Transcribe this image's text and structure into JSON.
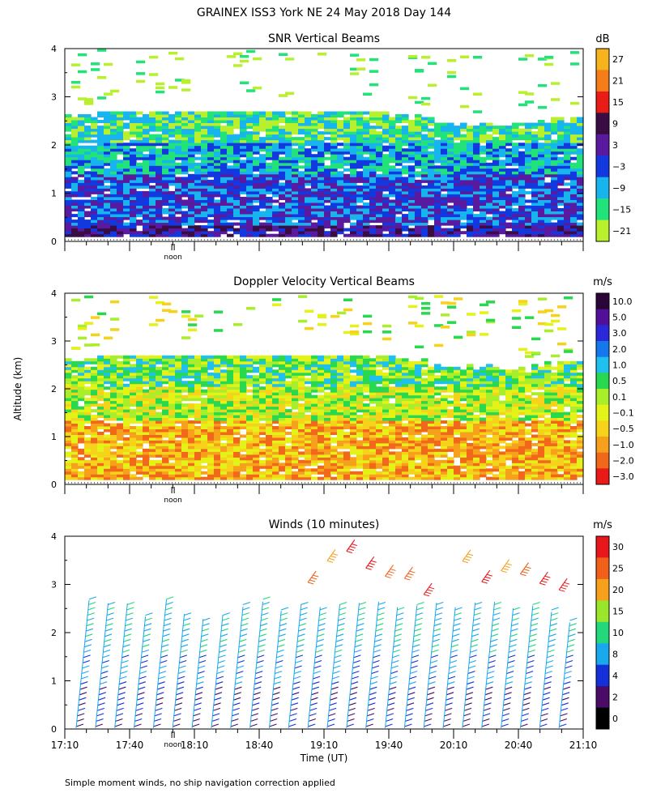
{
  "title": "GRAINEX ISS3 York NE  24 May 2018 Day 144",
  "ylabel": "Altitude (km)",
  "xlabel": "Time (UT)",
  "footnote": "Simple moment winds, no ship navigation correction applied",
  "noon_label": "noon",
  "chart_data": [
    {
      "type": "heatmap",
      "title": "SNR Vertical Beams",
      "ylim": [
        0,
        4
      ],
      "yticks": [
        "0",
        "1",
        "2",
        "3",
        "4"
      ],
      "colorbar": {
        "unit": "dB",
        "labels": [
          "27",
          "21",
          "15",
          "9",
          "3",
          "−3",
          "−9",
          "−15",
          "−21"
        ],
        "colors": [
          "#f6b31e",
          "#f47d1a",
          "#ea1c16",
          "#3a0c44",
          "#5a1aa0",
          "#1238e0",
          "#18b4ee",
          "#22e27a",
          "#b8f02e"
        ]
      }
    },
    {
      "type": "heatmap",
      "title": "Doppler Velocity Vertical Beams",
      "ylim": [
        0,
        4
      ],
      "yticks": [
        "0",
        "1",
        "2",
        "3",
        "4"
      ],
      "colorbar": {
        "unit": "m/s",
        "labels": [
          "10.0",
          "5.0",
          "3.0",
          "2.0",
          "1.0",
          "0.5",
          "0.1",
          "−0.1",
          "−0.5",
          "−1.0",
          "−2.0",
          "−3.0"
        ],
        "colors": [
          "#2a0638",
          "#52109a",
          "#2a28d8",
          "#1478ec",
          "#20c0ee",
          "#28d84e",
          "#a8ee2a",
          "#e4f218",
          "#f6d21a",
          "#f6a01c",
          "#f2681a",
          "#ea1a16"
        ]
      }
    },
    {
      "type": "scatter",
      "title": "Winds (10 minutes)",
      "ylim": [
        0,
        4
      ],
      "yticks": [
        "0",
        "1",
        "2",
        "3",
        "4"
      ],
      "xticks": [
        "17:10",
        "17:40",
        "18:10",
        "18:40",
        "19:10",
        "19:40",
        "20:10",
        "20:40",
        "21:10"
      ],
      "colorbar": {
        "unit": "m/s",
        "labels": [
          "30",
          "25",
          "20",
          "15",
          "10",
          "8",
          "4",
          "2",
          "0"
        ],
        "colors": [
          "#e8161a",
          "#f0601a",
          "#f6a01c",
          "#9ae62a",
          "#22d87a",
          "#18a8ee",
          "#1430d8",
          "#4a0c66",
          "#000000"
        ]
      }
    }
  ]
}
